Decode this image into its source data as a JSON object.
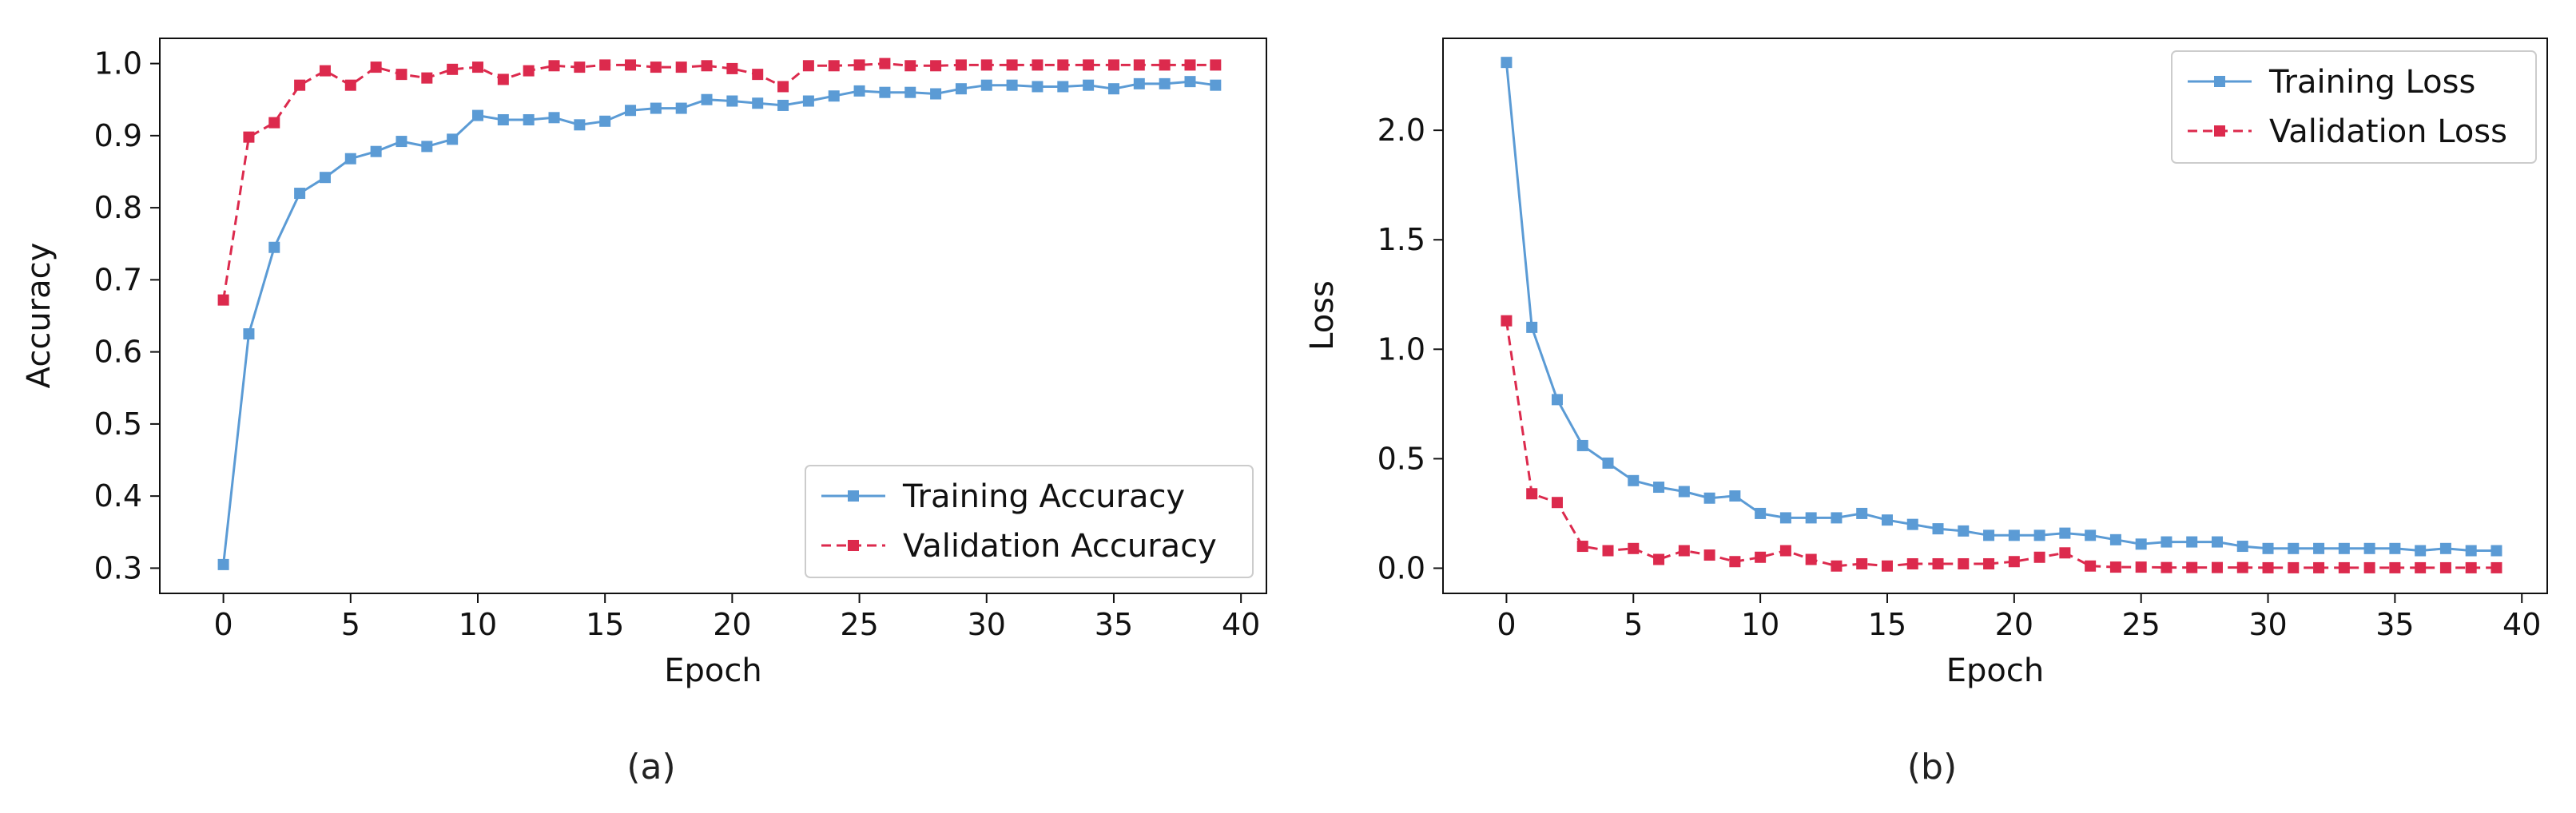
{
  "chart_data": [
    {
      "id": "a",
      "type": "line",
      "caption": "(a)",
      "xlabel": "Epoch",
      "ylabel": "Accuracy",
      "xlim": [
        -2.5,
        41
      ],
      "ylim": [
        0.265,
        1.035
      ],
      "xticks": [
        0,
        5,
        10,
        15,
        20,
        25,
        30,
        35,
        40
      ],
      "xtick_labels": [
        "0",
        "5",
        "10",
        "15",
        "20",
        "25",
        "30",
        "35",
        "40"
      ],
      "yticks": [
        0.3,
        0.4,
        0.5,
        0.6,
        0.7,
        0.8,
        0.9,
        1.0
      ],
      "ytick_labels": [
        "0.3",
        "0.4",
        "0.5",
        "0.6",
        "0.7",
        "0.8",
        "0.9",
        "1.0"
      ],
      "legend_position": "bottom-right",
      "x": [
        0,
        1,
        2,
        3,
        4,
        5,
        6,
        7,
        8,
        9,
        10,
        11,
        12,
        13,
        14,
        15,
        16,
        17,
        18,
        19,
        20,
        21,
        22,
        23,
        24,
        25,
        26,
        27,
        28,
        29,
        30,
        31,
        32,
        33,
        34,
        35,
        36,
        37,
        38,
        39
      ],
      "series": [
        {
          "name": "Training Accuracy",
          "color": "#5b9bd5",
          "style": "solid",
          "values": [
            0.305,
            0.625,
            0.745,
            0.82,
            0.842,
            0.868,
            0.878,
            0.892,
            0.885,
            0.895,
            0.928,
            0.922,
            0.922,
            0.925,
            0.915,
            0.92,
            0.935,
            0.938,
            0.938,
            0.95,
            0.948,
            0.945,
            0.942,
            0.948,
            0.955,
            0.962,
            0.96,
            0.96,
            0.958,
            0.965,
            0.97,
            0.97,
            0.968,
            0.968,
            0.97,
            0.965,
            0.972,
            0.972,
            0.975,
            0.97
          ]
        },
        {
          "name": "Validation Accuracy",
          "color": "#dc2a4d",
          "style": "dashed",
          "values": [
            0.672,
            0.898,
            0.918,
            0.97,
            0.99,
            0.97,
            0.995,
            0.985,
            0.98,
            0.992,
            0.995,
            0.978,
            0.99,
            0.997,
            0.995,
            0.998,
            0.998,
            0.995,
            0.995,
            0.997,
            0.993,
            0.985,
            0.968,
            0.997,
            0.997,
            0.998,
            1.0,
            0.997,
            0.997,
            0.998,
            0.998,
            0.998,
            0.998,
            0.998,
            0.998,
            0.998,
            0.998,
            0.998,
            0.998,
            0.998
          ]
        }
      ]
    },
    {
      "id": "b",
      "type": "line",
      "caption": "(b)",
      "xlabel": "Epoch",
      "ylabel": "Loss",
      "xlim": [
        -2.5,
        41
      ],
      "ylim": [
        -0.115,
        2.42
      ],
      "xticks": [
        0,
        5,
        10,
        15,
        20,
        25,
        30,
        35,
        40
      ],
      "xtick_labels": [
        "0",
        "5",
        "10",
        "15",
        "20",
        "25",
        "30",
        "35",
        "40"
      ],
      "yticks": [
        0.0,
        0.5,
        1.0,
        1.5,
        2.0
      ],
      "ytick_labels": [
        "0.0",
        "0.5",
        "1.0",
        "1.5",
        "2.0"
      ],
      "legend_position": "top-right",
      "x": [
        0,
        1,
        2,
        3,
        4,
        5,
        6,
        7,
        8,
        9,
        10,
        11,
        12,
        13,
        14,
        15,
        16,
        17,
        18,
        19,
        20,
        21,
        22,
        23,
        24,
        25,
        26,
        27,
        28,
        29,
        30,
        31,
        32,
        33,
        34,
        35,
        36,
        37,
        38,
        39
      ],
      "series": [
        {
          "name": "Training Loss",
          "color": "#5b9bd5",
          "style": "solid",
          "values": [
            2.31,
            1.1,
            0.77,
            0.56,
            0.48,
            0.4,
            0.37,
            0.35,
            0.32,
            0.33,
            0.25,
            0.23,
            0.23,
            0.23,
            0.25,
            0.22,
            0.2,
            0.18,
            0.17,
            0.15,
            0.15,
            0.15,
            0.16,
            0.15,
            0.13,
            0.11,
            0.12,
            0.12,
            0.12,
            0.1,
            0.09,
            0.09,
            0.09,
            0.09,
            0.09,
            0.09,
            0.08,
            0.09,
            0.08,
            0.08
          ]
        },
        {
          "name": "Validation Loss",
          "color": "#dc2a4d",
          "style": "dashed",
          "values": [
            1.13,
            0.34,
            0.3,
            0.1,
            0.08,
            0.09,
            0.04,
            0.08,
            0.06,
            0.03,
            0.05,
            0.08,
            0.04,
            0.01,
            0.02,
            0.01,
            0.02,
            0.02,
            0.02,
            0.02,
            0.03,
            0.05,
            0.07,
            0.01,
            0.005,
            0.005,
            0.003,
            0.003,
            0.003,
            0.003,
            0.002,
            0.002,
            0.002,
            0.002,
            0.002,
            0.002,
            0.002,
            0.002,
            0.002,
            0.002
          ]
        }
      ]
    }
  ]
}
